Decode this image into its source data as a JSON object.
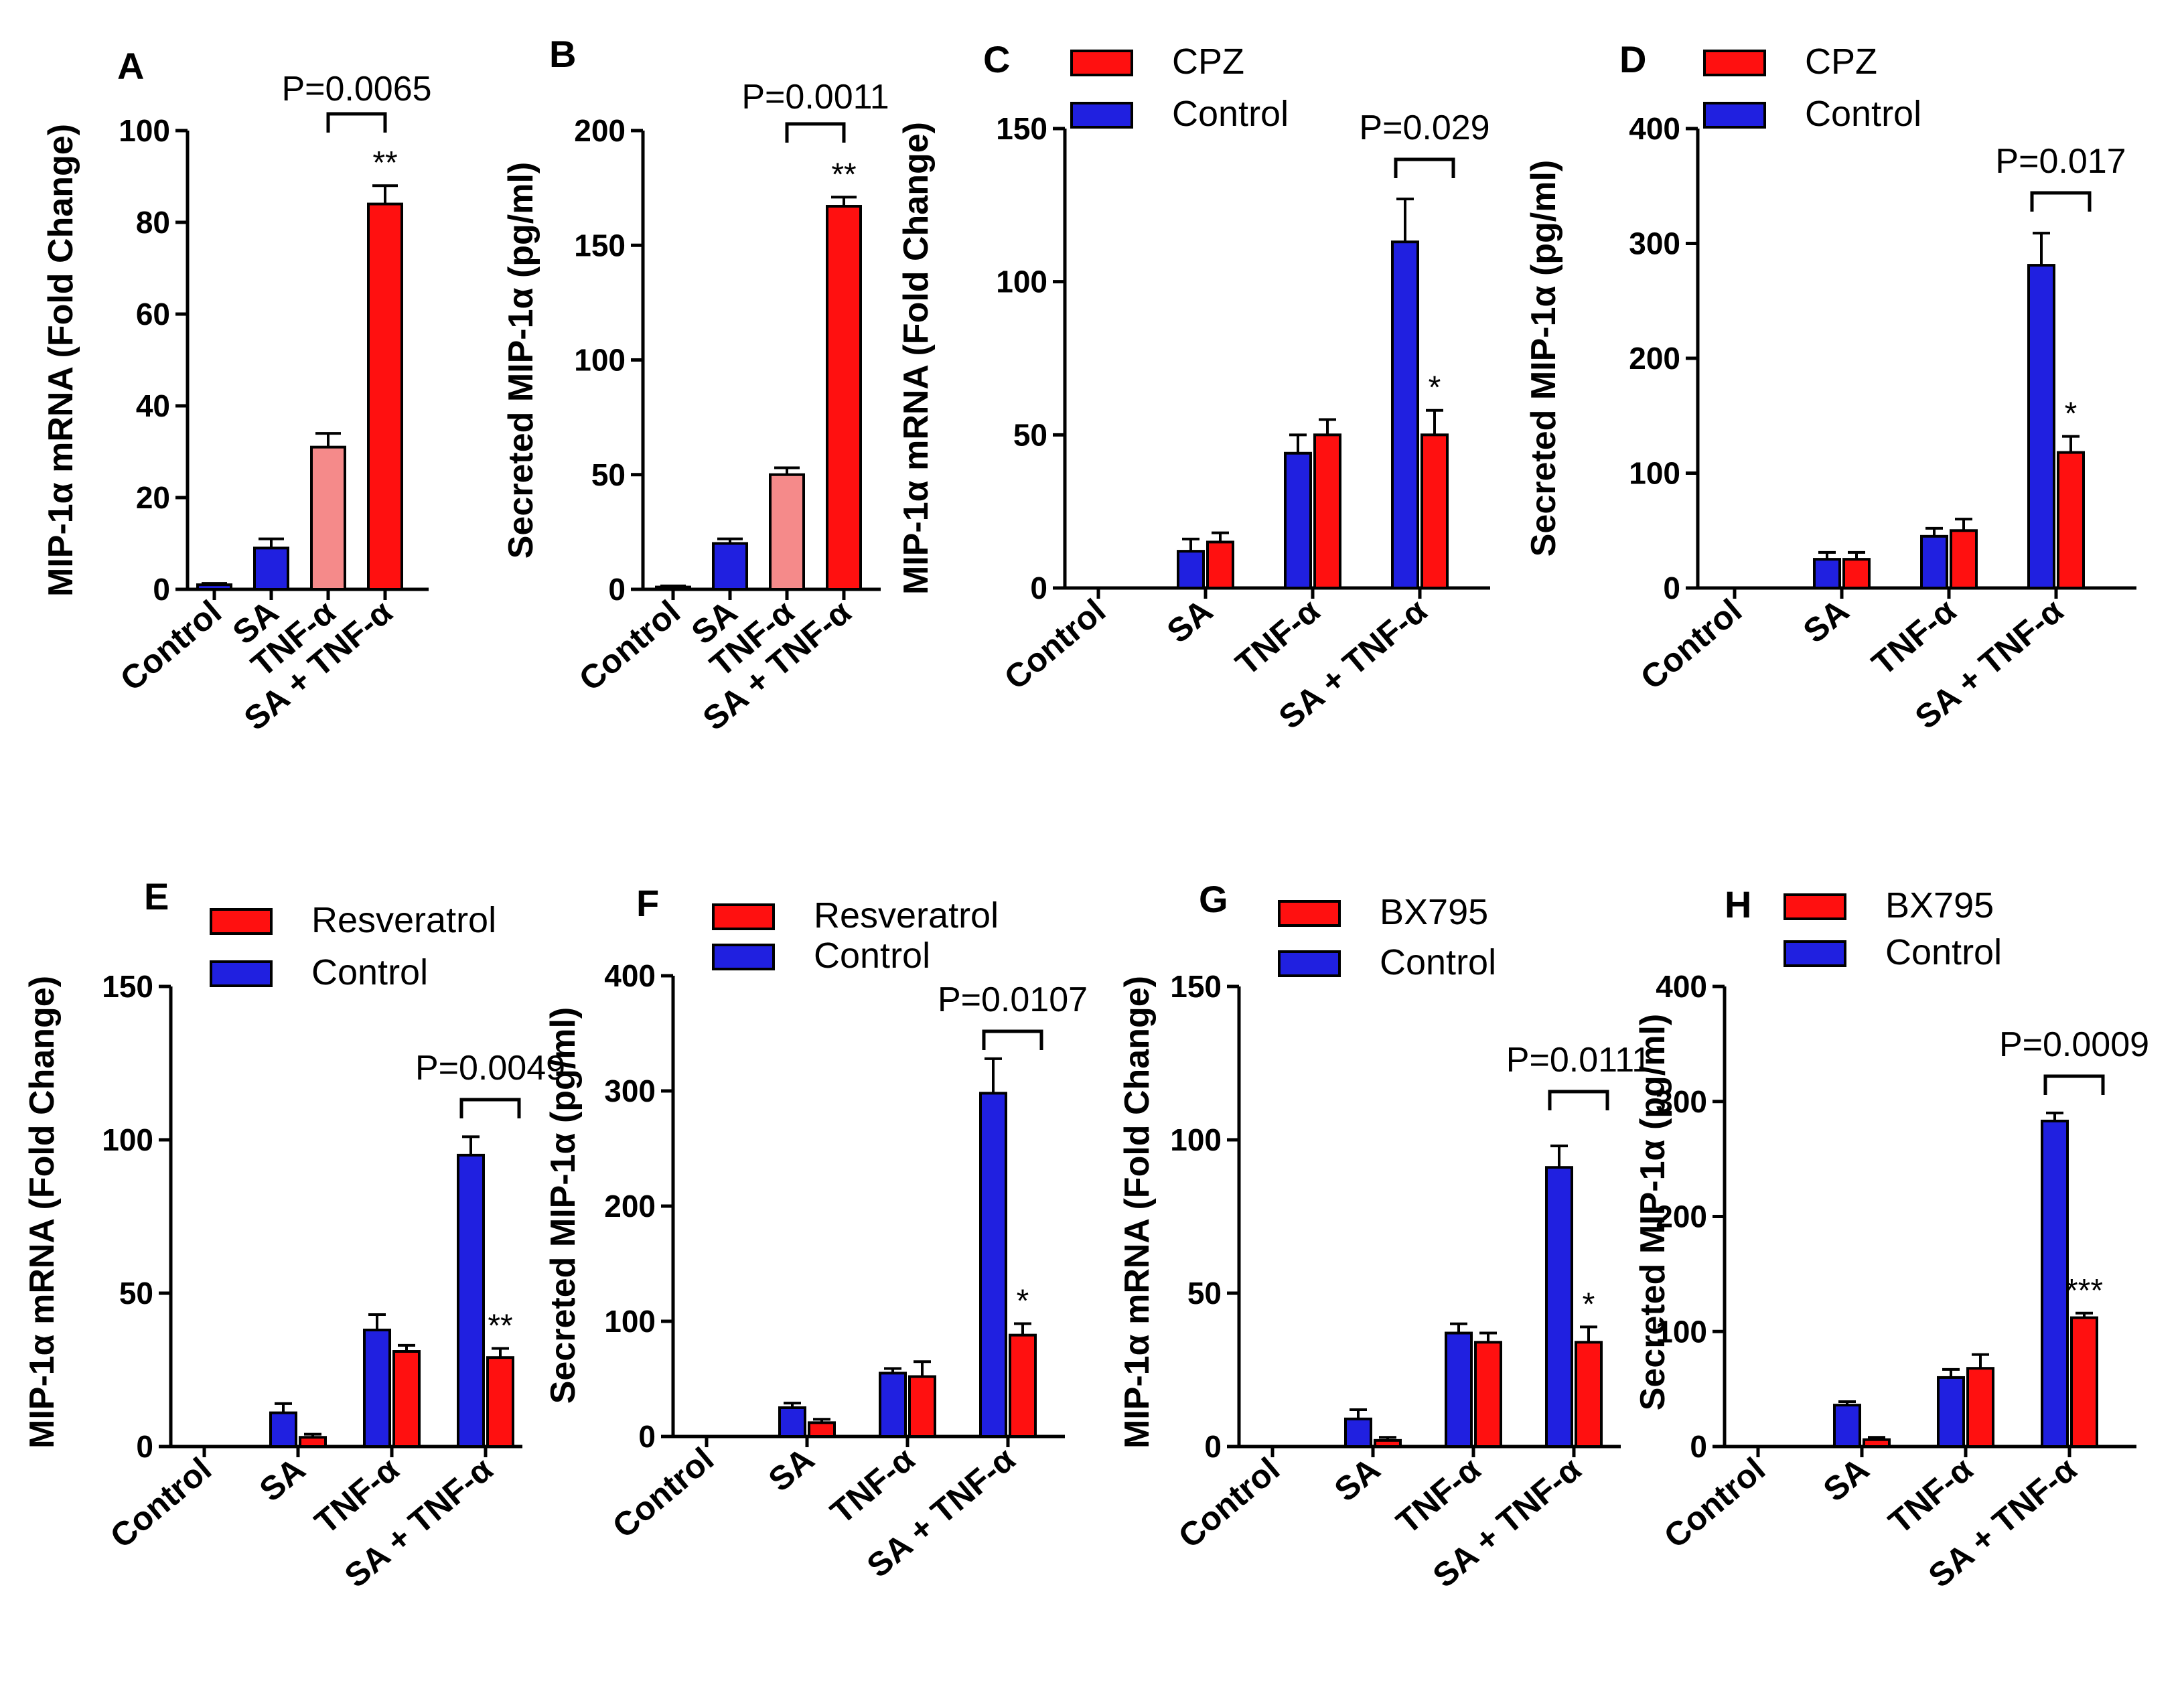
{
  "chart_data": [
    {
      "panel": "A",
      "type": "bar",
      "ylabel": "MIP-1α mRNA (Fold Change)",
      "ylim": [
        0,
        100
      ],
      "yticks": [
        0,
        20,
        40,
        60,
        80,
        100
      ],
      "categories": [
        "Control",
        "SA",
        "TNF-α",
        "SA + TNF-α"
      ],
      "values": [
        1,
        9,
        31,
        84
      ],
      "errors": [
        0.3,
        2,
        3,
        4
      ],
      "colors": [
        "#2020e0",
        "#2020e0",
        "#f58a8a",
        "#ff1010"
      ],
      "bracket": {
        "label": "P=0.0065",
        "from": 2,
        "to": 3
      },
      "stars": [
        {
          "index": 3,
          "label": "**"
        }
      ]
    },
    {
      "panel": "B",
      "type": "bar",
      "ylabel": "Secreted MIP-1α (pg/ml)",
      "ylim": [
        0,
        200
      ],
      "yticks": [
        0,
        50,
        100,
        150,
        200
      ],
      "categories": [
        "Control",
        "SA",
        "TNF-α",
        "SA + TNF-α"
      ],
      "values": [
        1,
        20,
        50,
        167
      ],
      "errors": [
        0.5,
        2,
        3,
        4
      ],
      "colors": [
        "#2020e0",
        "#2020e0",
        "#f58a8a",
        "#ff1010"
      ],
      "bracket": {
        "label": "P=0.0011",
        "from": 2,
        "to": 3
      },
      "stars": [
        {
          "index": 3,
          "label": "**"
        }
      ]
    },
    {
      "panel": "C",
      "type": "bar",
      "ylabel": "MIP-1α mRNA (Fold Change)",
      "ylim": [
        0,
        150
      ],
      "yticks": [
        0,
        50,
        100,
        150
      ],
      "categories": [
        "Control",
        "SA",
        "TNF-α",
        "SA + TNF-α"
      ],
      "series": [
        {
          "name": "Control",
          "color": "#2020e0",
          "values": [
            0,
            12,
            44,
            113
          ],
          "errors": [
            0,
            4,
            6,
            14
          ]
        },
        {
          "name": "CPZ",
          "color": "#ff1010",
          "values": [
            0,
            15,
            50,
            50
          ],
          "errors": [
            0,
            3,
            5,
            8
          ]
        }
      ],
      "legend": [
        "CPZ",
        "Control"
      ],
      "bracket": {
        "label": "P=0.029",
        "category": 3
      },
      "stars": [
        {
          "category": 3,
          "series": 1,
          "label": "*"
        }
      ]
    },
    {
      "panel": "D",
      "type": "bar",
      "ylabel": "Secreted MIP-1α  (pg/ml)",
      "ylim": [
        0,
        400
      ],
      "yticks": [
        0,
        100,
        200,
        300,
        400
      ],
      "categories": [
        "Control",
        "SA",
        "TNF-α",
        "SA + TNF-α"
      ],
      "series": [
        {
          "name": "Control",
          "color": "#2020e0",
          "values": [
            0,
            25,
            45,
            281
          ],
          "errors": [
            0,
            6,
            7,
            28
          ]
        },
        {
          "name": "CPZ",
          "color": "#ff1010",
          "values": [
            0,
            25,
            50,
            118
          ],
          "errors": [
            0,
            6,
            10,
            14
          ]
        }
      ],
      "legend": [
        "CPZ",
        "Control"
      ],
      "bracket": {
        "label": "P=0.017",
        "category": 3
      },
      "stars": [
        {
          "category": 3,
          "series": 1,
          "label": "*"
        }
      ]
    },
    {
      "panel": "E",
      "type": "bar",
      "ylabel": "MIP-1α  mRNA (Fold Change)",
      "ylim": [
        0,
        150
      ],
      "yticks": [
        0,
        50,
        100,
        150
      ],
      "categories": [
        "Control",
        "SA",
        "TNF-α",
        "SA + TNF-α"
      ],
      "series": [
        {
          "name": "Control",
          "color": "#2020e0",
          "values": [
            0,
            11,
            38,
            95
          ],
          "errors": [
            0,
            3,
            5,
            6
          ]
        },
        {
          "name": "Resveratrol",
          "color": "#ff1010",
          "values": [
            0,
            3,
            31,
            29
          ],
          "errors": [
            0,
            1,
            2,
            3
          ]
        }
      ],
      "legend": [
        "Resveratrol",
        "Control"
      ],
      "bracket": {
        "label": "P=0.0049",
        "category": 3
      },
      "stars": [
        {
          "category": 3,
          "series": 1,
          "label": "**"
        }
      ]
    },
    {
      "panel": "F",
      "type": "bar",
      "ylabel": "Secreted MIP-1α  (pg/ml)",
      "ylim": [
        0,
        400
      ],
      "yticks": [
        0,
        100,
        200,
        300,
        400
      ],
      "categories": [
        "Control",
        "SA",
        "TNF-α",
        "SA + TNF-α"
      ],
      "series": [
        {
          "name": "Control",
          "color": "#2020e0",
          "values": [
            0,
            25,
            55,
            298
          ],
          "errors": [
            0,
            4,
            4,
            30
          ]
        },
        {
          "name": "Resveratrol",
          "color": "#ff1010",
          "values": [
            0,
            12,
            52,
            88
          ],
          "errors": [
            0,
            3,
            13,
            10
          ]
        }
      ],
      "legend": [
        "Resveratrol",
        "Control"
      ],
      "bracket": {
        "label": "P=0.0107",
        "category": 3
      },
      "stars": [
        {
          "category": 3,
          "series": 1,
          "label": "*"
        }
      ]
    },
    {
      "panel": "G",
      "type": "bar",
      "ylabel": "MIP-1α  mRNA (Fold Change)",
      "ylim": [
        0,
        150
      ],
      "yticks": [
        0,
        50,
        100,
        150
      ],
      "categories": [
        "Control",
        "SA",
        "TNF-α",
        "SA + TNF-α"
      ],
      "series": [
        {
          "name": "Control",
          "color": "#2020e0",
          "values": [
            0,
            9,
            37,
            91
          ],
          "errors": [
            0,
            3,
            3,
            7
          ]
        },
        {
          "name": "BX795",
          "color": "#ff1010",
          "values": [
            0,
            2,
            34,
            34
          ],
          "errors": [
            0,
            1,
            3,
            5
          ]
        }
      ],
      "legend": [
        "BX795",
        "Control"
      ],
      "bracket": {
        "label": "P=0.0111",
        "category": 3
      },
      "stars": [
        {
          "category": 3,
          "series": 1,
          "label": "*"
        }
      ]
    },
    {
      "panel": "H",
      "type": "bar",
      "ylabel": "Secreted MIP-1α  (pg/ml)",
      "ylim": [
        0,
        400
      ],
      "yticks": [
        0,
        100,
        200,
        300,
        400
      ],
      "categories": [
        "Control",
        "SA",
        "TNF-α",
        "SA + TNF-α"
      ],
      "series": [
        {
          "name": "Control",
          "color": "#2020e0",
          "values": [
            0,
            36,
            60,
            283
          ],
          "errors": [
            0,
            3,
            7,
            7
          ]
        },
        {
          "name": "BX795",
          "color": "#ff1010",
          "values": [
            0,
            6,
            68,
            112
          ],
          "errors": [
            0,
            2,
            12,
            4
          ]
        }
      ],
      "legend": [
        "BX795",
        "Control"
      ],
      "bracket": {
        "label": "P=0.0009",
        "category": 3
      },
      "stars": [
        {
          "category": 3,
          "series": 1,
          "label": "***"
        }
      ]
    }
  ]
}
